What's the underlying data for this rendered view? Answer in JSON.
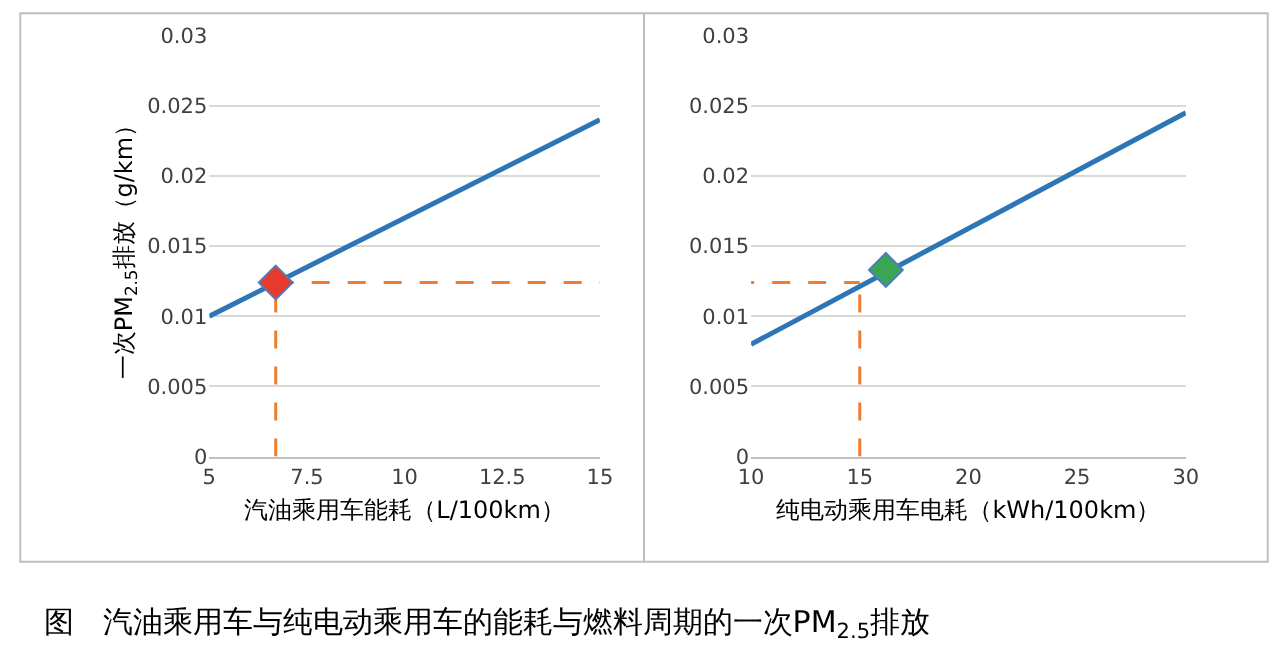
{
  "chart_data": [
    {
      "type": "line",
      "xlabel": "汽油乘用车能耗（L/100km）",
      "ylabel": "一次PM$_{2.5}$排放（g/km）",
      "xlim": [
        5,
        15
      ],
      "xticks": [
        5,
        7.5,
        10,
        12.5,
        15
      ],
      "ylim": [
        0,
        0.03
      ],
      "yticks": [
        0,
        0.005,
        0.01,
        0.015,
        0.02,
        0.025,
        0.03
      ],
      "grid": "y",
      "series": [
        {
          "color": "#2e75b6",
          "x": [
            5,
            15
          ],
          "values": [
            0.01,
            0.024
          ]
        },
        {
          "type": "scatter",
          "marker": "diamond",
          "color": "#e8392e",
          "x": [
            6.7
          ],
          "values": [
            0.0124
          ]
        }
      ],
      "ref_lines": [
        {
          "axis": "x",
          "value": 6.7,
          "color": "#ed7d31",
          "line_style": "dashed"
        },
        {
          "axis": "y",
          "value": 0.0124,
          "color": "#ed7d31",
          "line_style": "dashed"
        }
      ],
      "annotations": [
        "图   汽油乘用车与纯电动乘用车的能耗与燃料周期的一次PM$_{2.5}$排放"
      ]
    },
    {
      "type": "line",
      "xlabel": "纯电动乘用车电耗（kWh/100km）",
      "xlim": [
        10,
        30
      ],
      "xticks": [
        10,
        15,
        20,
        25,
        30
      ],
      "ylim": [
        0,
        0.03
      ],
      "yticks": [
        0,
        0.005,
        0.01,
        0.015,
        0.02,
        0.025,
        0.03
      ],
      "grid": "y",
      "series": [
        {
          "color": "#2e75b6",
          "x": [
            10,
            30
          ],
          "values": [
            0.008,
            0.0245
          ]
        },
        {
          "type": "scatter",
          "marker": "diamond",
          "color": "#3aa655",
          "x": [
            16.2
          ],
          "values": [
            0.0133
          ]
        }
      ],
      "ref_lines": [
        {
          "axis": "x",
          "value": 15,
          "color": "#ed7d31",
          "line_style": "dashed"
        },
        {
          "axis": "y",
          "value": 0.0124,
          "color": "#ed7d31",
          "line_style": "dashed"
        }
      ]
    }
  ]
}
